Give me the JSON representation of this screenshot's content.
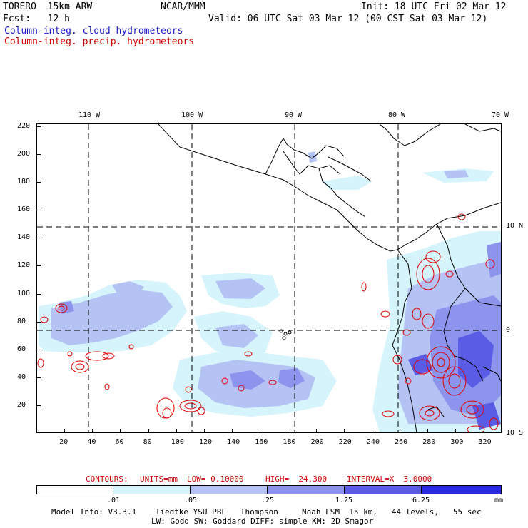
{
  "header": {
    "model": "TORERO  15km ARW",
    "org": "NCAR/MMM",
    "init": "Init: 18 UTC Fri 02 Mar 12",
    "fcst": "Fcst:   12 h",
    "valid": "Valid: 06 UTC Sat 03 Mar 12 (00 CST Sat 03 Mar 12)",
    "field1": "Column-integ. cloud hydrometeors",
    "field2": "Column-integ. precip. hydrometeors"
  },
  "colors": {
    "field1": "#1a1acc",
    "field2": "#cc0000",
    "shade_levels": [
      "#ffffff",
      "#d6f4fb",
      "#b4c3f4",
      "#8c94ee",
      "#5b5ce6",
      "#2a2ae0"
    ],
    "contour": "#e00000"
  },
  "map": {
    "x_ticks": [
      "20",
      "40",
      "60",
      "80",
      "100",
      "120",
      "140",
      "160",
      "180",
      "200",
      "220",
      "240",
      "260",
      "280",
      "300",
      "320"
    ],
    "y_ticks": [
      "20",
      "40",
      "60",
      "80",
      "100",
      "120",
      "140",
      "160",
      "180",
      "200",
      "220"
    ],
    "lon_labels": [
      "110 W",
      "100 W",
      "90 W",
      "80 W",
      "70 W"
    ],
    "lat_labels": [
      "10 N",
      "0",
      "10 S"
    ],
    "grid_x_range": [
      0,
      333
    ],
    "grid_y_range": [
      0,
      222
    ]
  },
  "contour_info": {
    "label": "CONTOURS:",
    "units": "UNITS=mm",
    "low": "LOW= 0.10000",
    "high": "HIGH=  24.300",
    "interval": "INTERVAL=X  3.0000"
  },
  "colorbar": {
    "levels": [
      ".01",
      ".05",
      ".25",
      "1.25",
      "6.25"
    ],
    "unit": "mm"
  },
  "footer": {
    "line1": "Model Info: V3.3.1    Tiedtke YSU PBL   Thompson     Noah LSM  15 km,   44 levels,   55 sec",
    "line2": "LW: Godd SW: Goddard DIFF: simple KM: 2D Smagor"
  }
}
